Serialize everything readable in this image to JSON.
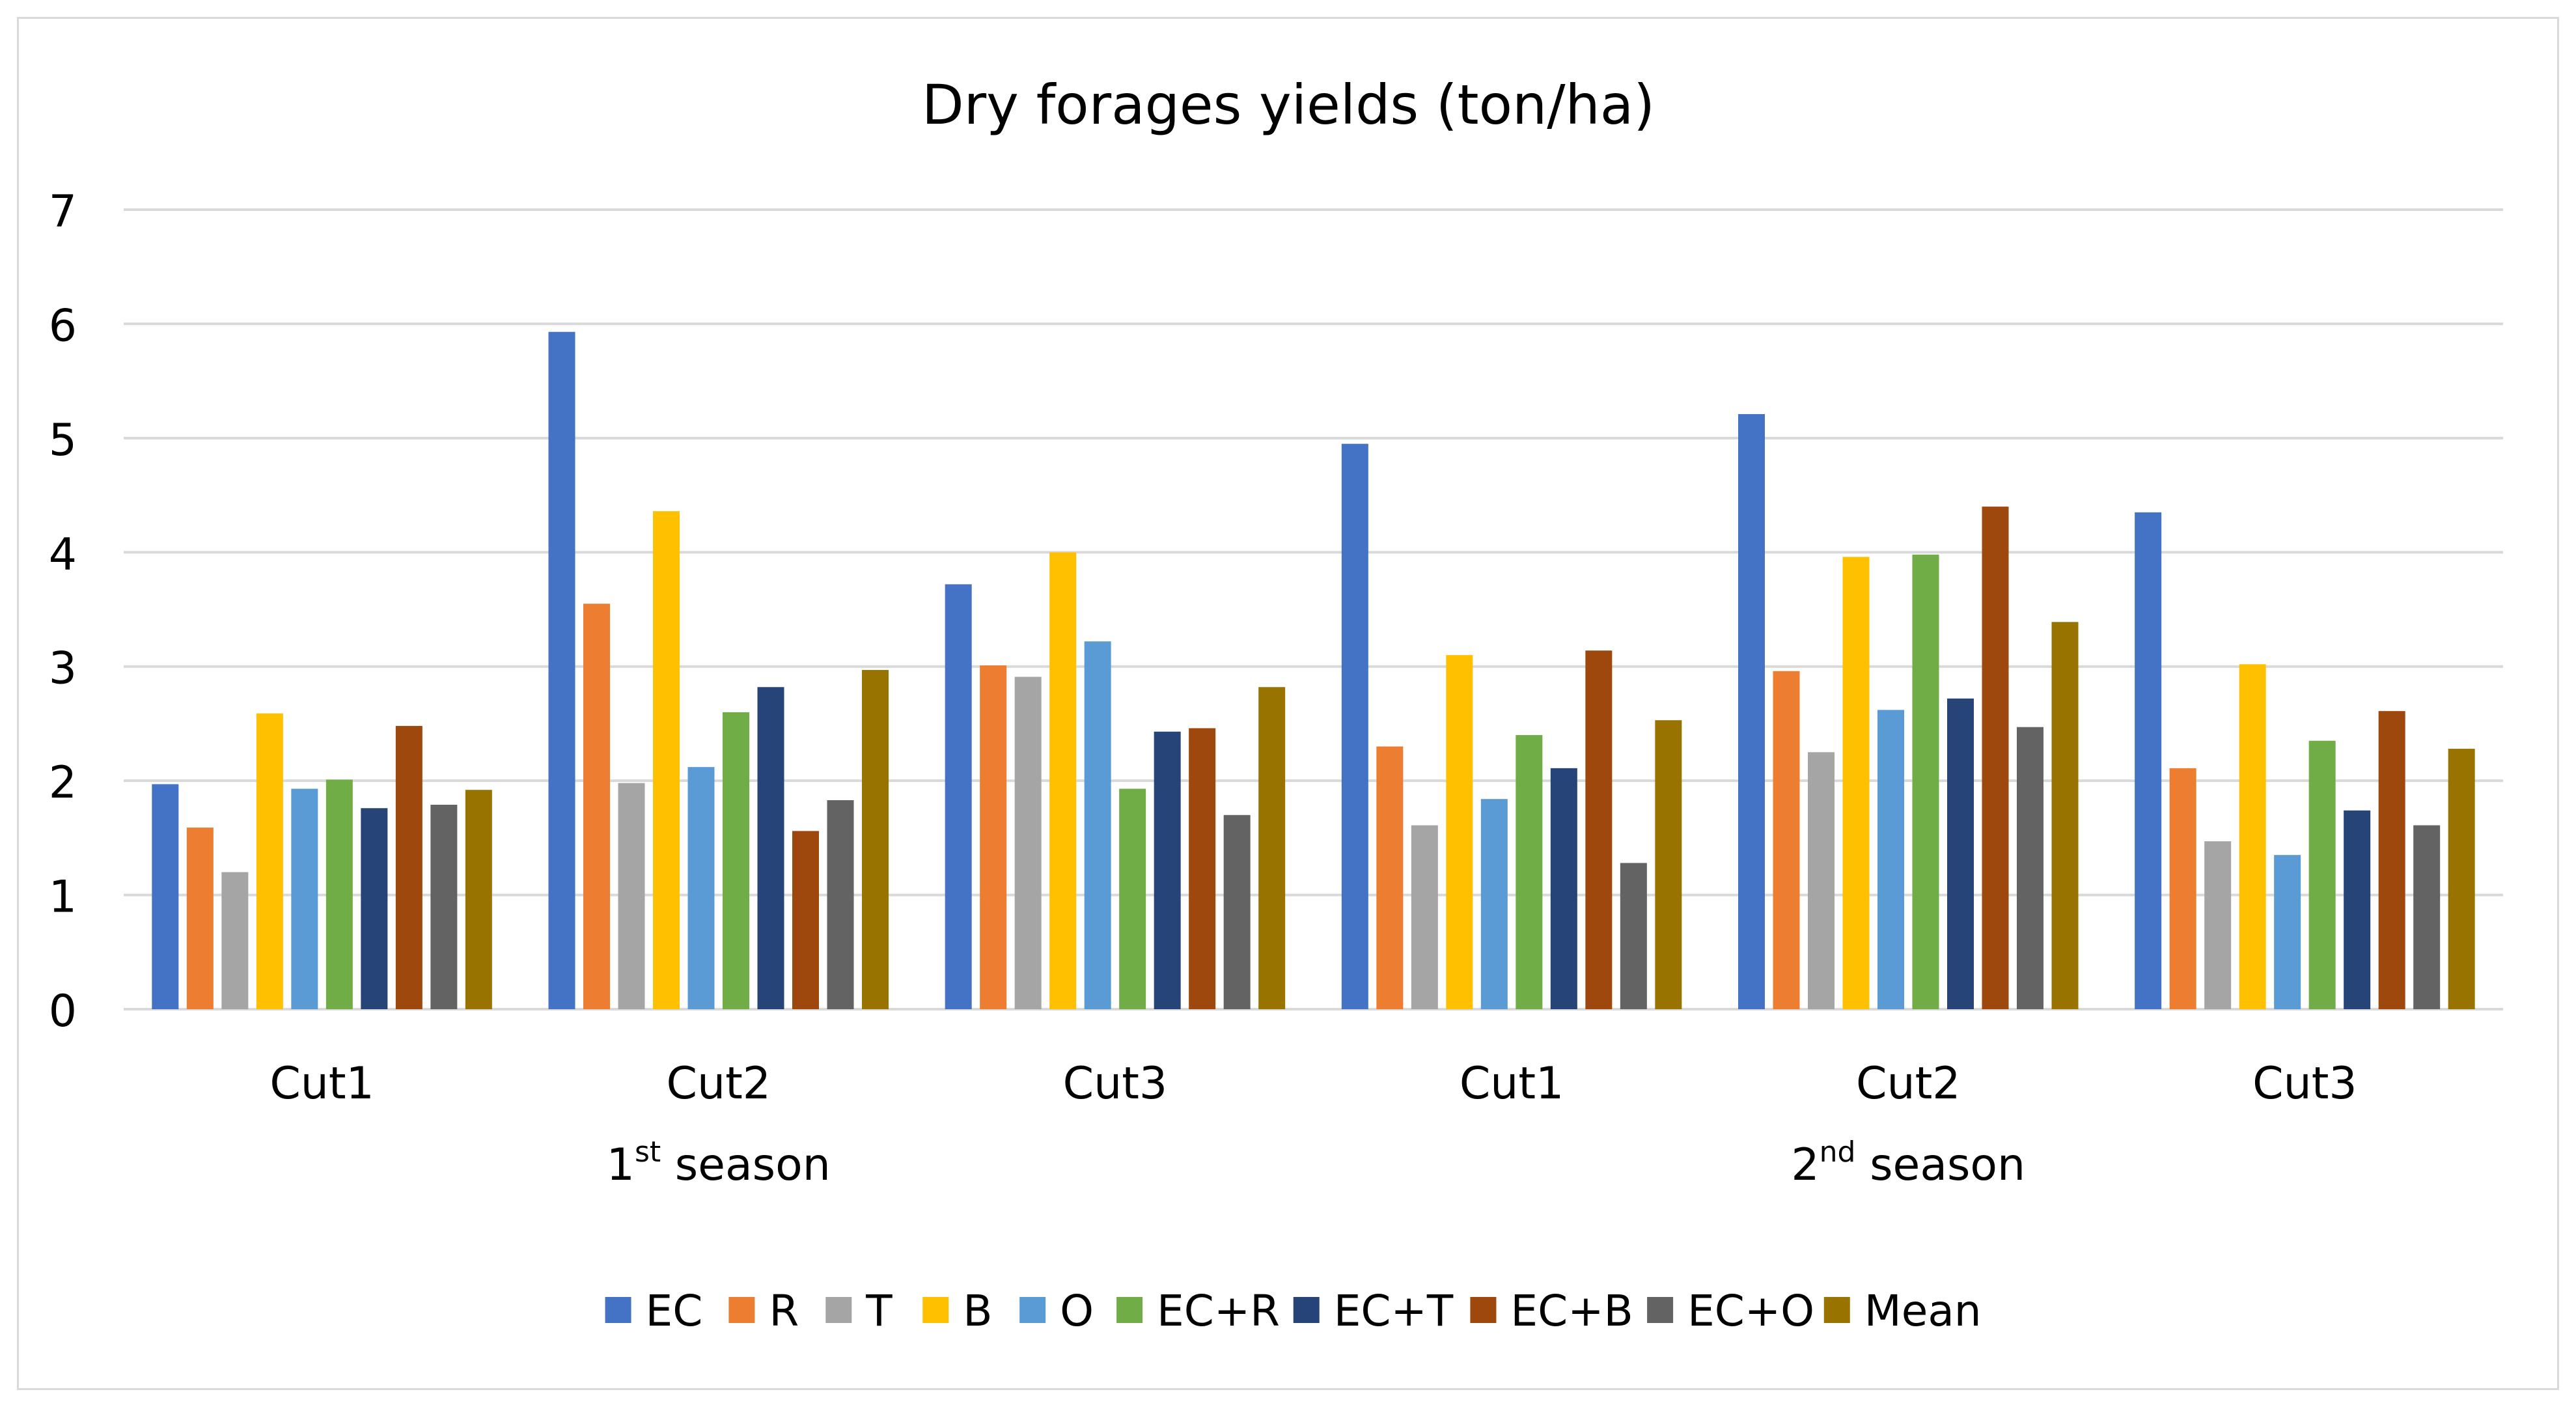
{
  "chart_data": {
    "type": "bar",
    "title": "Dry forages yields (ton/ha)",
    "ylim": [
      0,
      7
    ],
    "yticks": [
      "0",
      "1",
      "2",
      "3",
      "4",
      "5",
      "6",
      "7"
    ],
    "grid": true,
    "legend_position": "bottom",
    "categories": [
      "Cut1",
      "Cut2",
      "Cut3",
      "Cut1",
      "Cut2",
      "Cut3"
    ],
    "groups": [
      {
        "label": "1",
        "sup": "st",
        "rest": " season"
      },
      {
        "label": "2",
        "sup": "nd",
        "rest": " season"
      }
    ],
    "series": [
      {
        "name": "EC",
        "color": "#4472C4",
        "values": [
          1.97,
          5.93,
          3.72,
          4.95,
          5.21,
          4.35
        ]
      },
      {
        "name": "R",
        "color": "#ED7D31",
        "values": [
          1.59,
          3.55,
          3.01,
          2.3,
          2.96,
          2.11
        ]
      },
      {
        "name": "T",
        "color": "#A5A5A5",
        "values": [
          1.2,
          1.98,
          2.91,
          1.61,
          2.25,
          1.47
        ]
      },
      {
        "name": "B",
        "color": "#FFC000",
        "values": [
          2.59,
          4.36,
          4.0,
          3.1,
          3.96,
          3.02
        ]
      },
      {
        "name": "O",
        "color": "#5B9BD5",
        "values": [
          1.93,
          2.12,
          3.22,
          1.84,
          2.62,
          1.35
        ]
      },
      {
        "name": "EC+R",
        "color": "#70AD47",
        "values": [
          2.01,
          2.6,
          1.93,
          2.4,
          3.98,
          2.35
        ]
      },
      {
        "name": "EC+T",
        "color": "#264478",
        "values": [
          1.76,
          2.82,
          2.43,
          2.11,
          2.72,
          1.74
        ]
      },
      {
        "name": "EC+B",
        "color": "#9E480E",
        "values": [
          2.48,
          1.56,
          2.46,
          3.14,
          4.4,
          2.61
        ]
      },
      {
        "name": "EC+O",
        "color": "#636363",
        "values": [
          1.79,
          1.83,
          1.7,
          1.28,
          2.47,
          1.61
        ]
      },
      {
        "name": "Mean",
        "color": "#997300",
        "values": [
          1.92,
          2.97,
          2.82,
          2.53,
          3.39,
          2.28
        ]
      }
    ]
  }
}
